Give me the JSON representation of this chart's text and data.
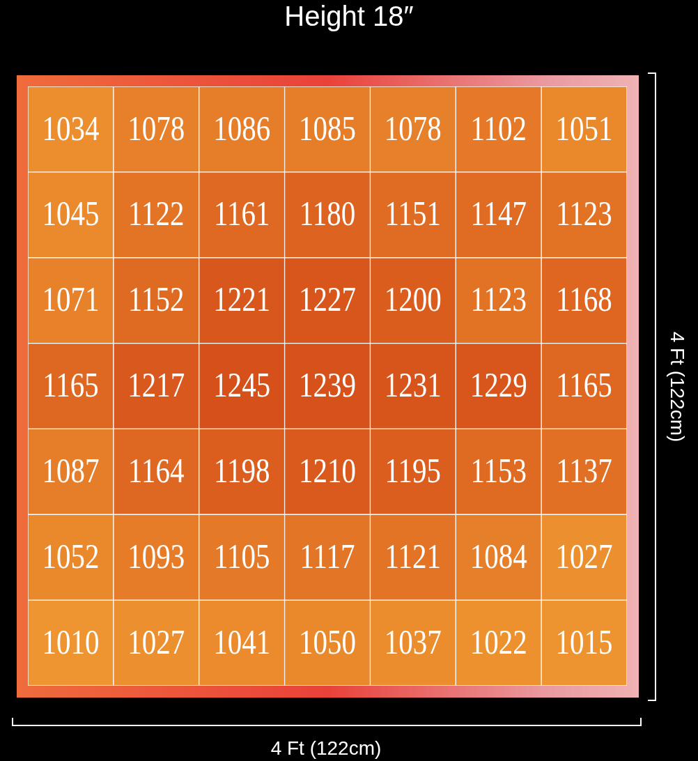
{
  "chart_data": {
    "type": "heatmap",
    "title": "Height 18″",
    "xlabel": "4 Ft (122cm)",
    "y2label": "4 Ft (122cm)",
    "categories": [
      null,
      null,
      null,
      null,
      null,
      null,
      null
    ],
    "y_categories": [
      null,
      null,
      null,
      null,
      null,
      null,
      null
    ],
    "cells": [
      [
        1034,
        1078,
        1086,
        1085,
        1078,
        1102,
        1051
      ],
      [
        1045,
        1122,
        1161,
        1180,
        1151,
        1147,
        1123
      ],
      [
        1071,
        1152,
        1221,
        1227,
        1200,
        1123,
        1168
      ],
      [
        1165,
        1217,
        1245,
        1239,
        1231,
        1229,
        1165
      ],
      [
        1087,
        1164,
        1198,
        1210,
        1195,
        1153,
        1137
      ],
      [
        1052,
        1093,
        1105,
        1117,
        1121,
        1084,
        1027
      ],
      [
        1010,
        1027,
        1041,
        1050,
        1037,
        1022,
        1015
      ]
    ],
    "data_labels": true
  }
}
